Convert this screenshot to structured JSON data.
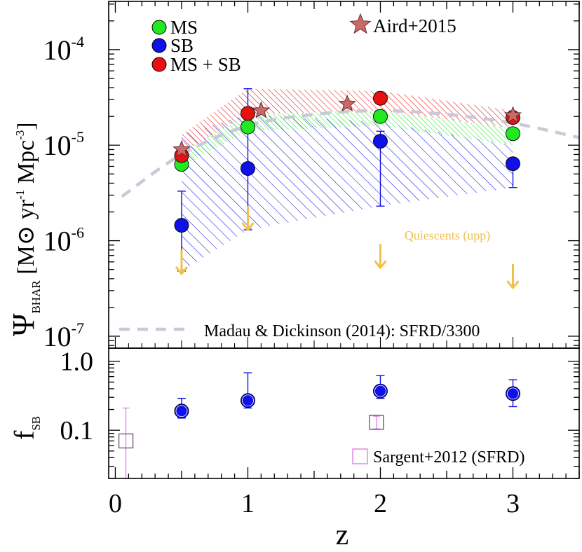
{
  "chart_data": [
    {
      "type": "scatter",
      "panel": "top",
      "ylabel": {
        "main": "Ψ",
        "sub": "BHAR",
        "unit_open": " [M",
        "unit_sun": "⊙",
        "unit_mid": " yr",
        "unit_exp1": "-1",
        "unit_mpc": " Mpc",
        "unit_exp2": "-3",
        "unit_close": "]"
      },
      "y_scale": "log",
      "ylim": [
        7.5e-08,
        0.00032
      ],
      "xlim": [
        -0.05,
        3.5
      ],
      "y_ticks": [
        {
          "value": 1e-07,
          "base": "10",
          "exp": "-7"
        },
        {
          "value": 1e-06,
          "base": "10",
          "exp": "-6"
        },
        {
          "value": 1e-05,
          "base": "10",
          "exp": "-5"
        },
        {
          "value": 0.0001,
          "base": "10",
          "exp": "-4"
        }
      ],
      "series": [
        {
          "name": "MS",
          "color": "#22e822",
          "marker": "circle",
          "points": [
            {
              "x": 0.5,
              "y": 6.3e-06
            },
            {
              "x": 1,
              "y": 1.55e-05
            },
            {
              "x": 2,
              "y": 2e-05
            },
            {
              "x": 3,
              "y": 1.32e-05
            }
          ]
        },
        {
          "name": "SB",
          "color": "#1010e8",
          "marker": "circle",
          "points": [
            {
              "x": 0.5,
              "y": 1.45e-06,
              "ylo": 4.8e-07,
              "yhi": 3.3e-06
            },
            {
              "x": 1,
              "y": 5.7e-06,
              "ylo": 1.3e-06,
              "yhi": 3.9e-05
            },
            {
              "x": 2,
              "y": 1.1e-05,
              "ylo": 2.3e-06,
              "yhi": 1.4e-05
            },
            {
              "x": 3,
              "y": 6.4e-06,
              "ylo": 3.6e-06,
              "yhi": 7e-06
            }
          ]
        },
        {
          "name": "MS + SB",
          "color": "#e81010",
          "marker": "circle",
          "points": [
            {
              "x": 0.5,
              "y": 7.8e-06
            },
            {
              "x": 1,
              "y": 2.15e-05
            },
            {
              "x": 2,
              "y": 3.1e-05
            },
            {
              "x": 3,
              "y": 1.95e-05
            }
          ]
        },
        {
          "name": "Aird+2015",
          "color": "#c96a6a",
          "marker": "star",
          "points": [
            {
              "x": 0.5,
              "y": 9e-06
            },
            {
              "x": 1.1,
              "y": 2.3e-05
            },
            {
              "x": 1.75,
              "y": 2.7e-05
            },
            {
              "x": 3,
              "y": 2.05e-05
            }
          ]
        },
        {
          "name": "Quiescents (upp)",
          "color": "#f2c04a",
          "marker": "arrow-down",
          "points": [
            {
              "x": 0.5,
              "y": 4.5e-07
            },
            {
              "x": 1,
              "y": 1.3e-06
            },
            {
              "x": 2,
              "y": 5.2e-07
            },
            {
              "x": 3,
              "y": 3.2e-07
            }
          ]
        },
        {
          "name": "Madau & Dickinson (2014): SFRD/3300",
          "color": "#c9c9d8",
          "marker": "dashed-line",
          "points": [
            {
              "x": 0.05,
              "y": 2.9e-06
            },
            {
              "x": 0.5,
              "y": 8e-06
            },
            {
              "x": 1,
              "y": 1.6e-05
            },
            {
              "x": 1.5,
              "y": 2.1e-05
            },
            {
              "x": 2,
              "y": 2.3e-05
            },
            {
              "x": 2.5,
              "y": 2.1e-05
            },
            {
              "x": 3,
              "y": 1.7e-05
            },
            {
              "x": 3.5,
              "y": 1.2e-05
            }
          ]
        }
      ],
      "bands": [
        {
          "name": "SB band",
          "color": "#1010e8",
          "upper": [
            {
              "x": 0.5,
              "y": 1.3e-05
            },
            {
              "x": 1,
              "y": 2.1e-05
            },
            {
              "x": 2,
              "y": 1.75e-05
            },
            {
              "x": 3,
              "y": 1e-05
            }
          ],
          "lower": [
            {
              "x": 0.5,
              "y": 4.8e-07
            },
            {
              "x": 1,
              "y": 1.3e-06
            },
            {
              "x": 2,
              "y": 2.3e-06
            },
            {
              "x": 3,
              "y": 3.6e-06
            }
          ]
        },
        {
          "name": "MS band",
          "color": "#22e822",
          "upper": [
            {
              "x": 0.5,
              "y": 8.5e-06
            },
            {
              "x": 1,
              "y": 2.1e-05
            },
            {
              "x": 2,
              "y": 2.3e-05
            },
            {
              "x": 3,
              "y": 1.5e-05
            }
          ],
          "lower": [
            {
              "x": 0.5,
              "y": 6e-06
            },
            {
              "x": 1,
              "y": 1.4e-05
            },
            {
              "x": 2,
              "y": 1.6e-05
            },
            {
              "x": 3,
              "y": 1e-05
            }
          ]
        },
        {
          "name": "MS + SB band",
          "color": "#e81010",
          "upper": [
            {
              "x": 0.5,
              "y": 1.3e-05
            },
            {
              "x": 1,
              "y": 3.9e-05
            },
            {
              "x": 2,
              "y": 3.7e-05
            },
            {
              "x": 3,
              "y": 2.3e-05
            }
          ],
          "lower": [
            {
              "x": 0.5,
              "y": 8.3e-06
            },
            {
              "x": 1,
              "y": 2.1e-05
            },
            {
              "x": 2,
              "y": 2.3e-05
            },
            {
              "x": 3,
              "y": 1.5e-05
            }
          ]
        }
      ],
      "legend_placement": "top-left, top-center, bottom-right"
    },
    {
      "type": "scatter",
      "panel": "bottom",
      "ylabel": {
        "main": "f",
        "sub": "SB"
      },
      "xlabel": "z",
      "y_scale": "log",
      "ylim": [
        0.02,
        1.55
      ],
      "xlim": [
        -0.05,
        3.5
      ],
      "y_ticks": [
        {
          "value": 0.1,
          "label": "0.1"
        },
        {
          "value": 1.0,
          "label": "1.0"
        }
      ],
      "x_ticks": [
        {
          "value": 0,
          "label": "0"
        },
        {
          "value": 1,
          "label": "1"
        },
        {
          "value": 2,
          "label": "2"
        },
        {
          "value": 3,
          "label": "3"
        }
      ],
      "series": [
        {
          "name": "f_SB",
          "color": "#1010e8",
          "marker": "circle",
          "points": [
            {
              "x": 0.5,
              "y": 0.19,
              "ylo": 0.15,
              "yhi": 0.29
            },
            {
              "x": 1,
              "y": 0.27,
              "ylo": 0.21,
              "yhi": 0.68
            },
            {
              "x": 2,
              "y": 0.37,
              "ylo": 0.29,
              "yhi": 0.62
            },
            {
              "x": 3,
              "y": 0.34,
              "ylo": 0.22,
              "yhi": 0.54
            }
          ]
        },
        {
          "name": "Sargent+2012 (SFRD)",
          "color": "#d77be0",
          "marker": "square",
          "points": [
            {
              "x": 0.08,
              "y": 0.07,
              "ylo": 0.02,
              "yhi": 0.21
            },
            {
              "x": 1.97,
              "y": 0.13,
              "ylo": 0.105,
              "yhi": 0.16
            }
          ]
        }
      ]
    }
  ]
}
